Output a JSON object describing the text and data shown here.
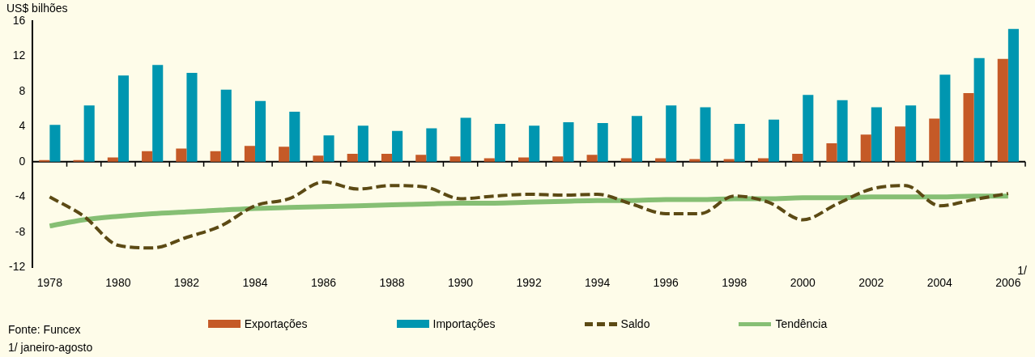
{
  "chart_data": {
    "type": "bar",
    "ylabel": "US$ bilhões",
    "categories": [
      "1978",
      null,
      "1980",
      null,
      "1982",
      null,
      "1984",
      null,
      "1986",
      null,
      "1988",
      null,
      "1990",
      null,
      "1992",
      null,
      "1994",
      null,
      "1996",
      null,
      "1998",
      null,
      "2000",
      null,
      "2002",
      null,
      "2004",
      null,
      "2006"
    ],
    "series": [
      {
        "name": "Exportações",
        "type": "bar",
        "color": "#c55a27",
        "values": [
          0.2,
          0.2,
          0.5,
          1.2,
          1.5,
          1.2,
          1.8,
          1.7,
          0.7,
          0.9,
          0.9,
          0.8,
          0.6,
          0.4,
          0.5,
          0.6,
          0.8,
          0.4,
          0.4,
          0.3,
          0.3,
          0.4,
          0.9,
          2.1,
          3.1,
          4.0,
          4.9,
          7.8,
          11.7
        ]
      },
      {
        "name": "Importações",
        "type": "bar",
        "color": "#0096b0",
        "values": [
          4.2,
          6.4,
          9.8,
          11.0,
          10.1,
          8.2,
          6.9,
          5.7,
          3.0,
          4.1,
          3.5,
          3.8,
          5.0,
          4.3,
          4.1,
          4.5,
          4.4,
          5.2,
          6.4,
          6.2,
          4.3,
          4.8,
          7.6,
          7.0,
          6.2,
          6.4,
          9.9,
          11.8,
          15.1
        ]
      },
      {
        "name": "Saldo",
        "type": "line",
        "line_style": "dashed",
        "color": "#5c4a14",
        "values": [
          -4.0,
          -6.2,
          -9.5,
          -9.8,
          -8.6,
          -7.3,
          -5.0,
          -4.2,
          -2.3,
          -3.1,
          -2.7,
          -2.9,
          -4.2,
          -3.9,
          -3.7,
          -3.8,
          -3.7,
          -4.8,
          -5.9,
          -5.9,
          -3.9,
          -4.6,
          -6.6,
          -4.8,
          -3.1,
          -2.7,
          -5.0,
          -4.3,
          -3.6
        ]
      },
      {
        "name": "Tendência",
        "type": "line",
        "line_style": "solid",
        "color": "#86bf74",
        "values": [
          -7.3,
          -6.6,
          -6.2,
          -5.9,
          -5.7,
          -5.5,
          -5.3,
          -5.2,
          -5.1,
          -5.0,
          -4.9,
          -4.8,
          -4.7,
          -4.7,
          -4.6,
          -4.5,
          -4.4,
          -4.4,
          -4.3,
          -4.3,
          -4.2,
          -4.2,
          -4.1,
          -4.1,
          -4.0,
          -4.0,
          -4.0,
          -3.9,
          -3.9
        ]
      }
    ],
    "ylim": [
      -12,
      16
    ],
    "yticks": [
      -12,
      -8,
      -4,
      0,
      4,
      8,
      12,
      16
    ],
    "marker": "none",
    "legend": "bottom",
    "annotations": [
      "1/",
      "Fonte: Funcex",
      "1/ janeiro-agosto"
    ]
  }
}
